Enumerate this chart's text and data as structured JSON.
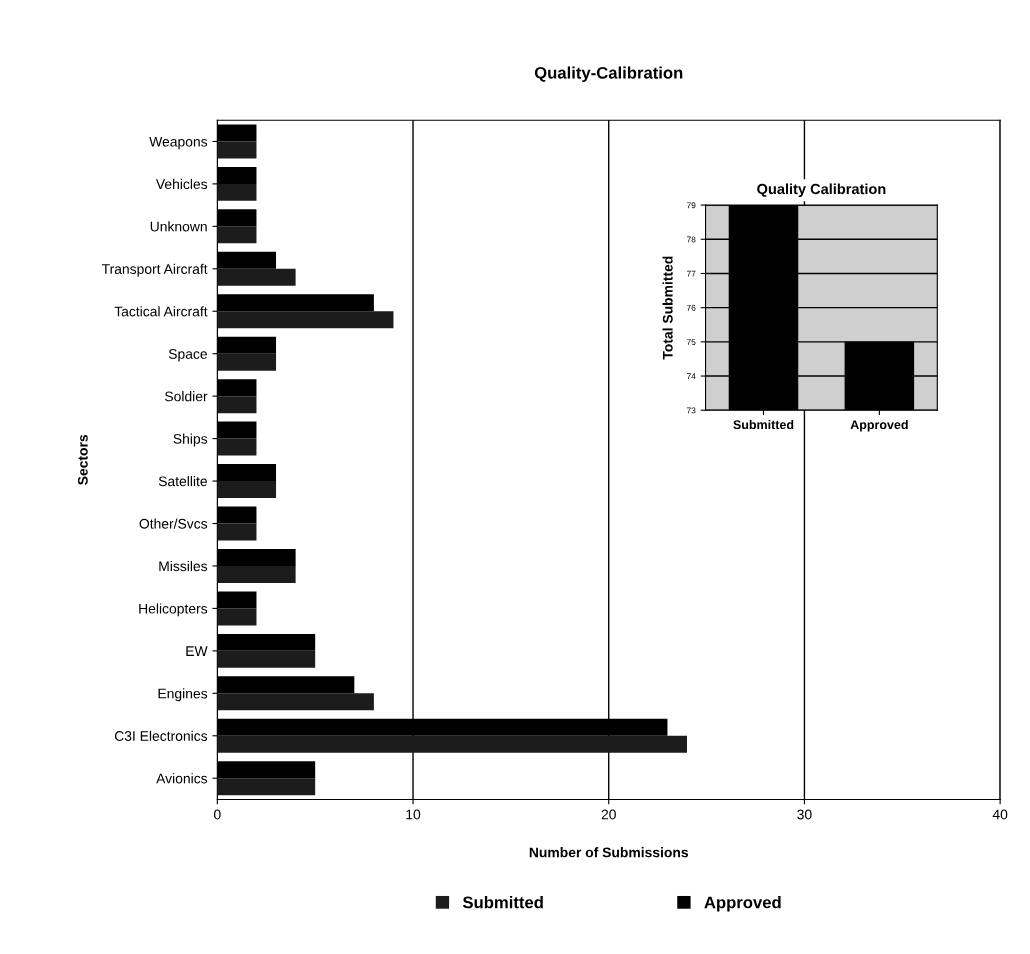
{
  "chart_data": [
    {
      "type": "bar",
      "orientation": "horizontal",
      "title": "Quality-Calibration",
      "xlabel": "Number of Submissions",
      "ylabel": "Sectors",
      "categories": [
        "Weapons",
        "Vehicles",
        "Unknown",
        "Transport Aircraft",
        "Tactical Aircraft",
        "Space",
        "Soldier",
        "Ships",
        "Satellite",
        "Other/Svcs",
        "Missiles",
        "Helicopters",
        "EW",
        "Engines",
        "C3I Electronics",
        "Avionics"
      ],
      "series": [
        {
          "name": "Submitted",
          "color": "#1c1c1c",
          "values": [
            2,
            2,
            2,
            4,
            9,
            3,
            2,
            2,
            3,
            2,
            4,
            2,
            5,
            8,
            24,
            5
          ]
        },
        {
          "name": "Approved",
          "color": "#000000",
          "values": [
            2,
            2,
            2,
            3,
            8,
            3,
            2,
            2,
            3,
            2,
            4,
            2,
            5,
            7,
            23,
            5
          ]
        }
      ],
      "xlim": [
        0,
        40
      ],
      "xticks": [
        0,
        10,
        20,
        30,
        40
      ],
      "grid": "x",
      "legend": "bottom"
    },
    {
      "type": "bar",
      "title": "Quality Calibration",
      "ylabel": "Total Submitted",
      "categories": [
        "Submitted",
        "Approved"
      ],
      "values": [
        79,
        75
      ],
      "color": "#000000",
      "ylim": [
        73,
        79
      ],
      "yticks": [
        73,
        74,
        75,
        76,
        77,
        78,
        79
      ],
      "grid": "y"
    }
  ]
}
